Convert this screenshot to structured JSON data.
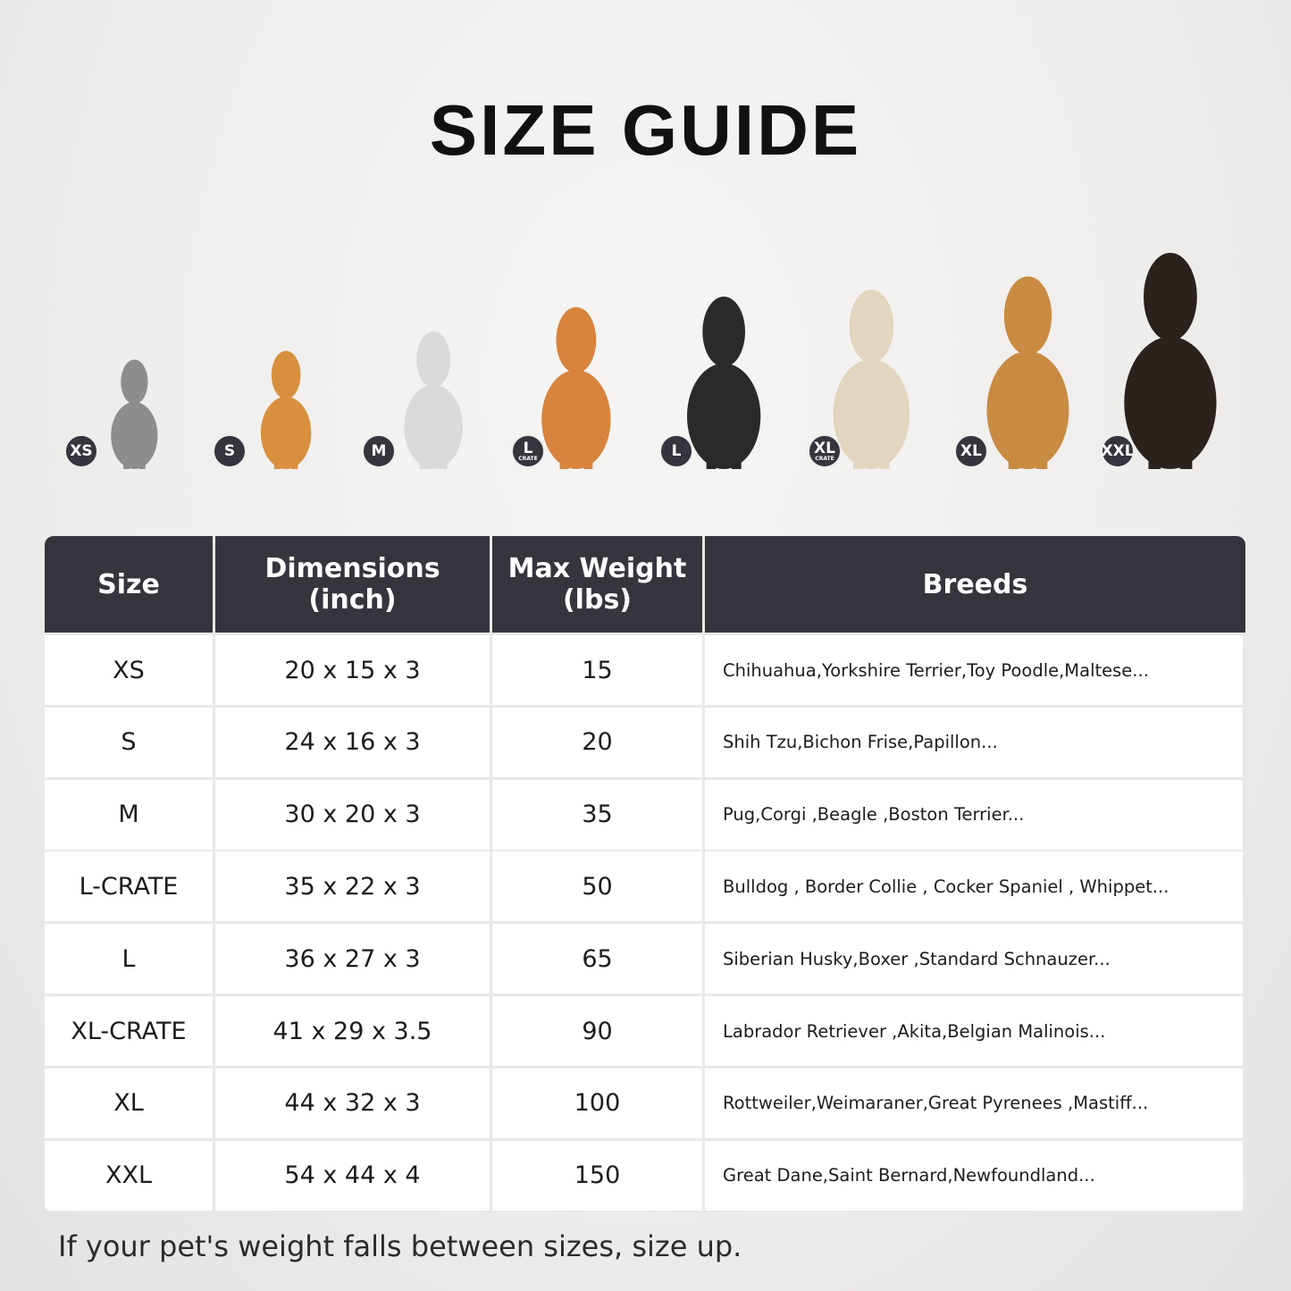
{
  "title": "SIZE GUIDE",
  "pets": [
    {
      "badge": "XS",
      "sub": "",
      "animal": "cat",
      "color": "#8d8d90"
    },
    {
      "badge": "S",
      "sub": "",
      "animal": "pomeranian",
      "color": "#d88f3e"
    },
    {
      "badge": "M",
      "sub": "",
      "animal": "french-bulldog",
      "color": "#dcdad8"
    },
    {
      "badge": "L",
      "sub": "CRATE",
      "animal": "shiba-inu",
      "color": "#d8843f"
    },
    {
      "badge": "L",
      "sub": "",
      "animal": "border-collie",
      "color": "#2a2a2a"
    },
    {
      "badge": "XL",
      "sub": "CRATE",
      "animal": "labrador",
      "color": "#e2d6c0"
    },
    {
      "badge": "XL",
      "sub": "",
      "animal": "golden-retriever",
      "color": "#c98b42"
    },
    {
      "badge": "XXL",
      "sub": "",
      "animal": "doberman",
      "color": "#2b211d"
    }
  ],
  "table": {
    "headers": [
      "Size",
      "Dimensions\n(inch)",
      "Max Weight\n(lbs)",
      "Breeds"
    ],
    "rows": [
      [
        "XS",
        "20 x 15 x 3",
        "15",
        "Chihuahua,Yorkshire Terrier,Toy Poodle,Maltese..."
      ],
      [
        "S",
        "24 x 16 x 3",
        "20",
        "Shih Tzu,Bichon Frise,Papillon..."
      ],
      [
        "M",
        "30 x 20 x 3",
        "35",
        "Pug,Corgi ,Beagle ,Boston Terrier..."
      ],
      [
        "L-CRATE",
        "35 x 22 x 3",
        "50",
        "Bulldog , Border Collie , Cocker Spaniel , Whippet..."
      ],
      [
        "L",
        "36 x 27 x 3",
        "65",
        "Siberian Husky,Boxer ,Standard Schnauzer..."
      ],
      [
        "XL-CRATE",
        "41 x 29 x 3.5",
        "90",
        "Labrador Retriever ,Akita,Belgian Malinois..."
      ],
      [
        "XL",
        "44 x 32 x 3",
        "100",
        "Rottweiler,Weimaraner,Great Pyrenees ,Mastiff..."
      ],
      [
        "XXL",
        "54 x 44 x 4",
        "150",
        "Great Dane,Saint Bernard,Newfoundland..."
      ]
    ]
  },
  "colors": {
    "header": "#34353d",
    "badge": "#34353d"
  },
  "note": "If your pet's weight falls between sizes, size up."
}
